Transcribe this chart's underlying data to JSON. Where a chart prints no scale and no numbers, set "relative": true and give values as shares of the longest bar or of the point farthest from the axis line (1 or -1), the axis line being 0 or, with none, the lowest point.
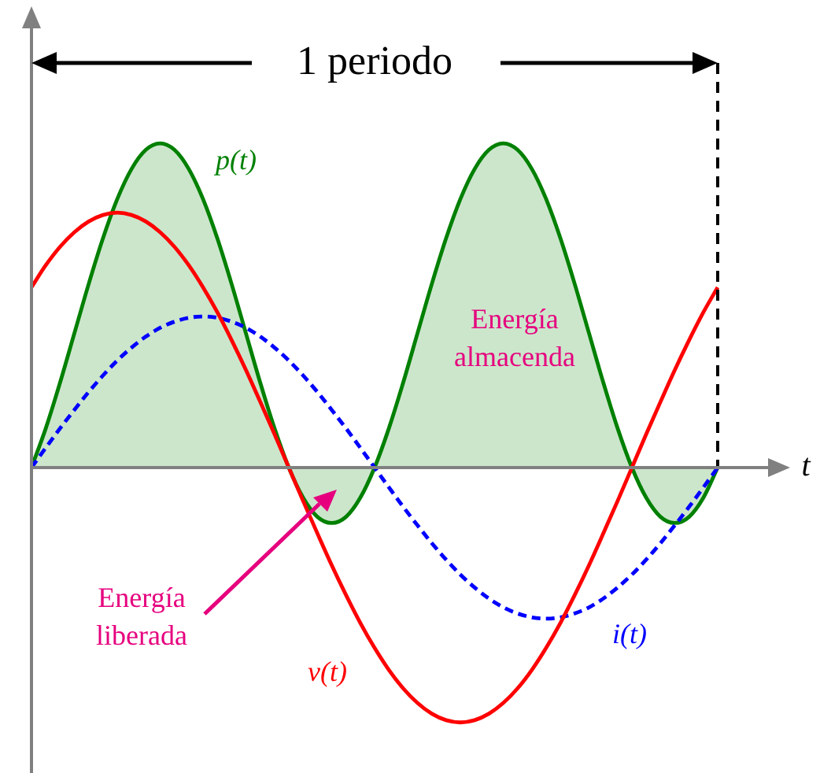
{
  "chart_data": {
    "type": "line",
    "relative": true,
    "xlabel": "t",
    "marker": "none",
    "legend": false,
    "categories": [
      null,
      null,
      null,
      null,
      null,
      null,
      null,
      null,
      null,
      null,
      null,
      null,
      null,
      null,
      null,
      null,
      null,
      null,
      null,
      null,
      null,
      null,
      null,
      null,
      null,
      null,
      null,
      null,
      null,
      null,
      null,
      null,
      null,
      null,
      null,
      null,
      null,
      null,
      null,
      null,
      null,
      null,
      null,
      null,
      null,
      null,
      null,
      null,
      null
    ],
    "series": [
      {
        "name": "p(t)",
        "type": "area",
        "color": "#008000",
        "values": [
          0,
          0.121,
          0.262,
          0.414,
          0.566,
          0.707,
          0.828,
          0.921,
          0.98,
          1,
          0.98,
          0.921,
          0.828,
          0.707,
          0.566,
          0.414,
          0.262,
          0.121,
          0,
          -0.093,
          -0.152,
          -0.171,
          -0.152,
          -0.093,
          0,
          0.121,
          0.262,
          0.414,
          0.566,
          0.707,
          0.828,
          0.921,
          0.98,
          1,
          0.98,
          0.921,
          0.828,
          0.707,
          0.566,
          0.414,
          0.262,
          0.121,
          0,
          -0.093,
          -0.152,
          -0.171,
          -0.152,
          -0.093,
          0
        ]
      },
      {
        "name": "v(t)",
        "type": "line",
        "color": "#ff0000",
        "values": [
          0.556,
          0.624,
          0.681,
          0.726,
          0.759,
          0.779,
          0.786,
          0.779,
          0.759,
          0.726,
          0.681,
          0.624,
          0.556,
          0.479,
          0.393,
          0.301,
          0.203,
          0.103,
          0,
          -0.103,
          -0.203,
          -0.301,
          -0.393,
          -0.479,
          -0.556,
          -0.624,
          -0.681,
          -0.726,
          -0.759,
          -0.779,
          -0.786,
          -0.779,
          -0.759,
          -0.726,
          -0.681,
          -0.624,
          -0.556,
          -0.479,
          -0.393,
          -0.301,
          -0.203,
          -0.103,
          0,
          0.103,
          0.203,
          0.301,
          0.393,
          0.479,
          0.556
        ]
      },
      {
        "name": "i(t)",
        "type": "line",
        "line_style": "dashed",
        "color": "#0000ff",
        "values": [
          0,
          0.061,
          0.121,
          0.178,
          0.233,
          0.284,
          0.33,
          0.37,
          0.404,
          0.431,
          0.45,
          0.462,
          0.466,
          0.462,
          0.45,
          0.431,
          0.404,
          0.37,
          0.33,
          0.284,
          0.233,
          0.178,
          0.121,
          0.061,
          0,
          -0.061,
          -0.121,
          -0.178,
          -0.233,
          -0.284,
          -0.33,
          -0.37,
          -0.404,
          -0.431,
          -0.45,
          -0.462,
          -0.466,
          -0.462,
          -0.45,
          -0.431,
          -0.404,
          -0.37,
          -0.33,
          -0.284,
          -0.233,
          -0.178,
          -0.121,
          -0.061,
          0
        ]
      }
    ],
    "annotations": [
      "1 periodo",
      "Energía almacenda",
      "Energía liberada"
    ]
  }
}
